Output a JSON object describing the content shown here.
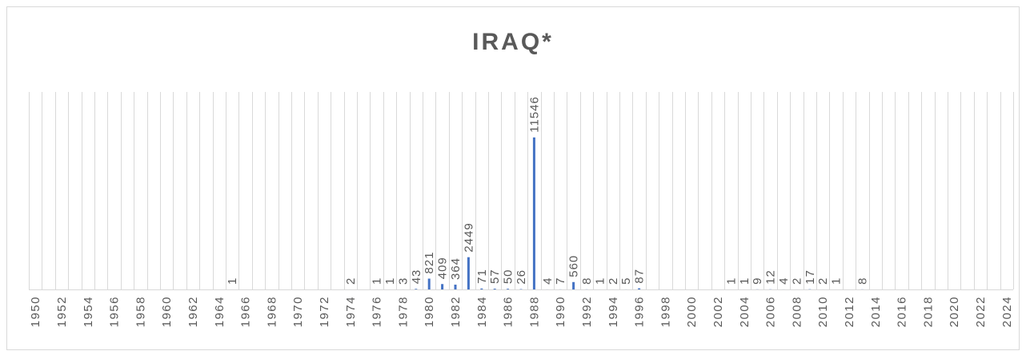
{
  "chart_data": {
    "type": "bar",
    "title": "IRAQ*",
    "xlabel": "",
    "ylabel": "",
    "ylim": [
      0,
      15000
    ],
    "grid": "vertical",
    "legend": "none",
    "bar_color": "#4472c4",
    "grid_color": "#d9d9d9",
    "text_color": "#595959",
    "x_range": [
      1950,
      2024
    ],
    "tick_labels": [
      "1950",
      "1952",
      "1954",
      "1956",
      "1958",
      "1960",
      "1962",
      "1964",
      "1966",
      "1968",
      "1970",
      "1972",
      "1974",
      "1976",
      "1978",
      "1980",
      "1982",
      "1984",
      "1986",
      "1988",
      "1990",
      "1992",
      "1994",
      "1996",
      "1998",
      "2000",
      "2002",
      "2004",
      "2006",
      "2008",
      "2010",
      "2012",
      "2014",
      "2016",
      "2018",
      "2020",
      "2022",
      "2024"
    ],
    "points": [
      {
        "x": 1965,
        "value": 1,
        "label": "1"
      },
      {
        "x": 1974,
        "value": 2,
        "label": "2"
      },
      {
        "x": 1976,
        "value": 1,
        "label": "1"
      },
      {
        "x": 1977,
        "value": 1,
        "label": "1"
      },
      {
        "x": 1978,
        "value": 3,
        "label": "3"
      },
      {
        "x": 1979,
        "value": 43,
        "label": "43"
      },
      {
        "x": 1980,
        "value": 821,
        "label": "821"
      },
      {
        "x": 1981,
        "value": 409,
        "label": "409"
      },
      {
        "x": 1982,
        "value": 364,
        "label": "364"
      },
      {
        "x": 1983,
        "value": 2449,
        "label": "2449"
      },
      {
        "x": 1984,
        "value": 71,
        "label": "71"
      },
      {
        "x": 1985,
        "value": 57,
        "label": "57"
      },
      {
        "x": 1986,
        "value": 50,
        "label": "50"
      },
      {
        "x": 1987,
        "value": 26,
        "label": "26"
      },
      {
        "x": 1988,
        "value": 11546,
        "label": "11546"
      },
      {
        "x": 1989,
        "value": 4,
        "label": "4"
      },
      {
        "x": 1990,
        "value": 7,
        "label": "7"
      },
      {
        "x": 1991,
        "value": 560,
        "label": "560"
      },
      {
        "x": 1992,
        "value": 8,
        "label": "8"
      },
      {
        "x": 1993,
        "value": 1,
        "label": "1"
      },
      {
        "x": 1994,
        "value": 2,
        "label": "2"
      },
      {
        "x": 1995,
        "value": 5,
        "label": "5"
      },
      {
        "x": 1996,
        "value": 87,
        "label": "87"
      },
      {
        "x": 2003,
        "value": 1,
        "label": "1"
      },
      {
        "x": 2004,
        "value": 1,
        "label": "1"
      },
      {
        "x": 2005,
        "value": 9,
        "label": "9"
      },
      {
        "x": 2006,
        "value": 12,
        "label": "12"
      },
      {
        "x": 2007,
        "value": 4,
        "label": "4"
      },
      {
        "x": 2008,
        "value": 2,
        "label": "2"
      },
      {
        "x": 2009,
        "value": 17,
        "label": "17"
      },
      {
        "x": 2010,
        "value": 2,
        "label": "2"
      },
      {
        "x": 2011,
        "value": 1,
        "label": "1"
      },
      {
        "x": 2013,
        "value": 8,
        "label": "8"
      }
    ]
  }
}
